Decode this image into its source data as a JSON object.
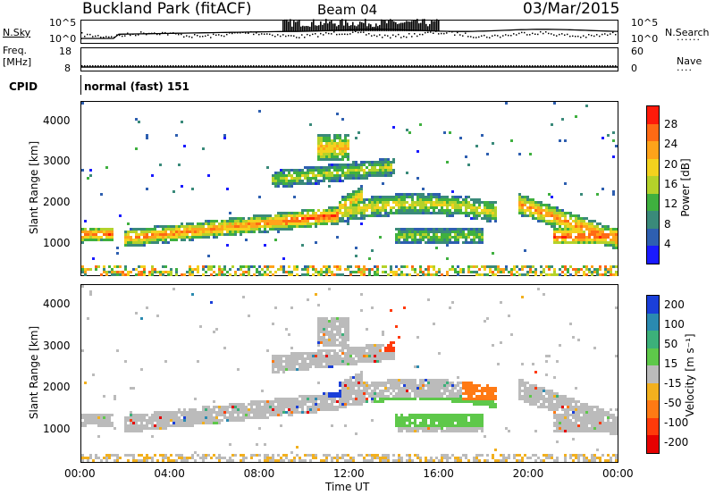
{
  "header": {
    "station": "Buckland Park (fitACF)",
    "beam": "Beam 04",
    "date": "03/Mar/2015"
  },
  "top_panels": {
    "nsky_label": "N.Sky",
    "nsky_ticks": [
      "10^5",
      "10^0"
    ],
    "nsearch_label": "N.Search",
    "nsearch_ticks": [
      "10^5",
      "10^0"
    ],
    "freq_label": "Freq.",
    "freq_unit": "[MHz]",
    "freq_ticks": [
      "18",
      "8"
    ],
    "nave_label": "Nave",
    "nave_ticks": [
      "60",
      "0"
    ],
    "cpid_label": "CPID",
    "cpid_value": "normal (fast) 151"
  },
  "colors": {
    "power_scale": [
      "#1a1aff",
      "#2e5fb0",
      "#3a8a7a",
      "#3fb03f",
      "#b4d22a",
      "#f3d21e",
      "#ffa31a",
      "#ff6a14",
      "#ff1a0a"
    ],
    "velocity_scale": [
      "#1a3fd9",
      "#2a8ab0",
      "#3cb07a",
      "#5ec84a",
      "#bbbbbb",
      "#f2b01e",
      "#ff7a14",
      "#ff3a0a",
      "#e60000"
    ]
  },
  "chart_data": [
    {
      "type": "heatmap",
      "name_shown": "Power",
      "ylabel": "Slant Range [km]",
      "yticks": [
        "1000",
        "2000",
        "3000",
        "4000"
      ],
      "ylim": [
        200,
        4500
      ],
      "xlim_hours": [
        0,
        24
      ],
      "colorbar_label": "Power [dB]",
      "colorbar_ticks": [
        "4",
        "8",
        "12",
        "16",
        "20",
        "24",
        "28"
      ],
      "colorbar_range": [
        0,
        30
      ]
    },
    {
      "type": "heatmap",
      "name_shown": "Velocity",
      "ylabel": "Slant Range [km]",
      "yticks": [
        "1000",
        "2000",
        "3000",
        "4000"
      ],
      "ylim": [
        200,
        4500
      ],
      "xlim_hours": [
        0,
        24
      ],
      "colorbar_label": "Velocity [m s⁻¹]",
      "colorbar_ticks": [
        "200",
        "100",
        "50",
        "15",
        "-15",
        "-50",
        "-100",
        "-200"
      ]
    }
  ],
  "xaxis": {
    "label": "Time UT",
    "ticks": [
      "00:00",
      "04:00",
      "08:00",
      "12:00",
      "16:00",
      "20:00",
      "00:00"
    ]
  }
}
